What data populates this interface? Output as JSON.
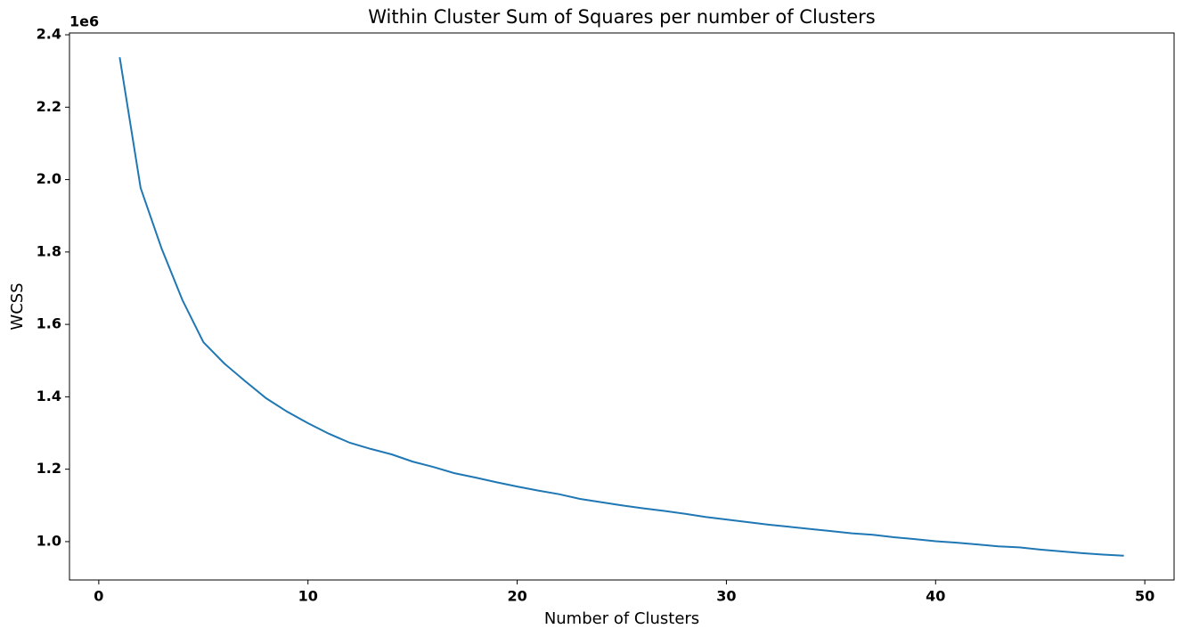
{
  "chart_data": {
    "type": "line",
    "title": "Within Cluster Sum of Squares per number of Clusters",
    "xlabel": "Number of Clusters",
    "ylabel": "WCSS",
    "y_offset_label": "1e6",
    "x": [
      1,
      2,
      3,
      4,
      5,
      6,
      7,
      8,
      9,
      10,
      11,
      12,
      13,
      14,
      15,
      16,
      17,
      18,
      19,
      20,
      21,
      22,
      23,
      24,
      25,
      26,
      27,
      28,
      29,
      30,
      31,
      32,
      33,
      34,
      35,
      36,
      37,
      38,
      39,
      40,
      41,
      42,
      43,
      44,
      45,
      46,
      47,
      48,
      49
    ],
    "series": [
      {
        "color": "#1f77b4",
        "values": [
          2.338,
          1.977,
          1.81,
          1.667,
          1.551,
          1.492,
          1.443,
          1.396,
          1.359,
          1.327,
          1.298,
          1.273,
          1.256,
          1.241,
          1.221,
          1.206,
          1.189,
          1.177,
          1.164,
          1.152,
          1.141,
          1.131,
          1.118,
          1.109,
          1.1,
          1.092,
          1.085,
          1.077,
          1.068,
          1.061,
          1.054,
          1.047,
          1.041,
          1.035,
          1.029,
          1.023,
          1.019,
          1.012,
          1.007,
          1.001,
          0.997,
          0.992,
          0.987,
          0.984,
          0.978,
          0.973,
          0.968,
          0.964,
          0.961
        ]
      }
    ],
    "xlim": [
      -1.4,
      51.4
    ],
    "ylim": [
      0.894,
      2.405
    ],
    "xticks": [
      0,
      10,
      20,
      30,
      40,
      50
    ],
    "yticks": [
      {
        "value": 1.0,
        "label": "1.0"
      },
      {
        "value": 1.2,
        "label": "1.2"
      },
      {
        "value": 1.4,
        "label": "1.4"
      },
      {
        "value": 1.6,
        "label": "1.6"
      },
      {
        "value": 1.8,
        "label": "1.8"
      },
      {
        "value": 2.0,
        "label": "2.0"
      },
      {
        "value": 2.2,
        "label": "2.2"
      },
      {
        "value": 2.4,
        "label": "2.4"
      }
    ],
    "grid": false
  }
}
